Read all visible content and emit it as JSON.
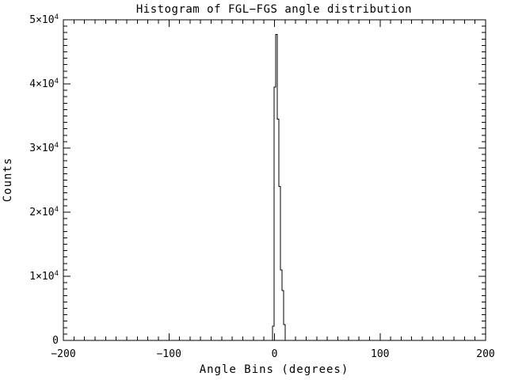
{
  "window": {
    "background_color": "#ffffff",
    "foreground_color": "#000000"
  },
  "chart_data": {
    "type": "bar",
    "subtype": "histogram-step-outline",
    "title": "Histogram of FGL−FGS angle distribution",
    "xlabel": "Angle Bins (degrees)",
    "ylabel": "Counts",
    "xlim": [
      -200,
      200
    ],
    "ylim": [
      0,
      50000
    ],
    "grid": false,
    "legend_position": "none",
    "line_color": "#000000",
    "x_major_ticks": [
      -200,
      -100,
      0,
      100,
      200
    ],
    "x_tick_labels": [
      "−200",
      "−100",
      "0",
      "100",
      "200"
    ],
    "x_minor_tick_interval": 10,
    "y_major_ticks": [
      0,
      10000,
      20000,
      30000,
      40000,
      50000
    ],
    "y_tick_labels": [
      {
        "mantissa": "0",
        "exp": ""
      },
      {
        "mantissa": "1×10",
        "exp": "4"
      },
      {
        "mantissa": "2×10",
        "exp": "4"
      },
      {
        "mantissa": "3×10",
        "exp": "4"
      },
      {
        "mantissa": "4×10",
        "exp": "4"
      },
      {
        "mantissa": "5×10",
        "exp": "4"
      }
    ],
    "y_minor_tick_interval": 1000,
    "bin_width": 1.5,
    "bins": [
      {
        "center": -1.0,
        "count": 2200
      },
      {
        "center": 0.5,
        "count": 39500
      },
      {
        "center": 2.0,
        "count": 47700
      },
      {
        "center": 3.5,
        "count": 34500
      },
      {
        "center": 5.0,
        "count": 24000
      },
      {
        "center": 6.5,
        "count": 11000
      },
      {
        "center": 8.0,
        "count": 7800
      },
      {
        "center": 9.5,
        "count": 2500
      }
    ],
    "peak_count": 47700,
    "peak_bin_center": 2.0
  }
}
